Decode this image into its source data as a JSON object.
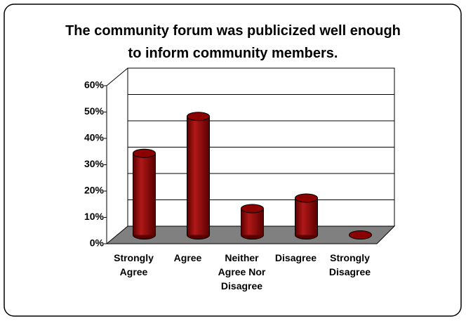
{
  "chart_data": {
    "type": "bar3d",
    "title": "The community forum was publicized well enough to inform community members.",
    "categories": [
      "Strongly Agree",
      "Agree",
      "Neither Agree Nor Disagree",
      "Disagree",
      "Strongly Disagree"
    ],
    "values": [
      31,
      45,
      10,
      14,
      0
    ],
    "color": "#8b0000",
    "ylim": [
      0,
      60
    ],
    "yticks": [
      {
        "value": 0,
        "label": "0%"
      },
      {
        "value": 10,
        "label": "10%"
      },
      {
        "value": 20,
        "label": "20%"
      },
      {
        "value": 30,
        "label": "30%"
      },
      {
        "value": 40,
        "label": "40%"
      },
      {
        "value": 50,
        "label": "50%"
      },
      {
        "value": 60,
        "label": "60%"
      }
    ],
    "grid": true
  }
}
